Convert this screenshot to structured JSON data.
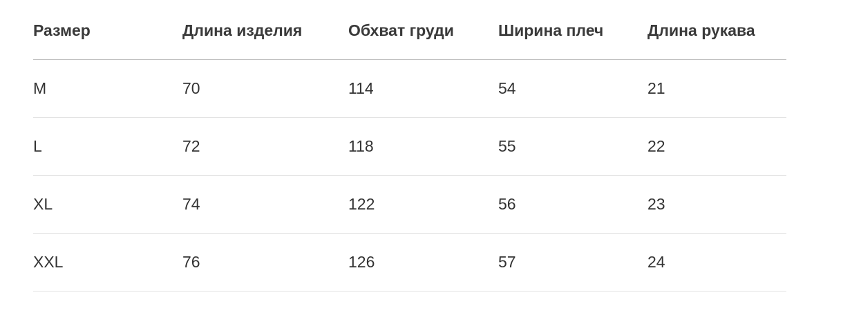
{
  "table": {
    "headers": [
      "Размер",
      "Длина изделия",
      "Обхват груди",
      "Ширина плеч",
      "Длина рукава"
    ],
    "rows": [
      [
        "M",
        "70",
        "114",
        "54",
        "21"
      ],
      [
        "L",
        "72",
        "118",
        "55",
        "22"
      ],
      [
        "XL",
        "74",
        "122",
        "56",
        "23"
      ],
      [
        "XXL",
        "76",
        "126",
        "57",
        "24"
      ]
    ]
  }
}
